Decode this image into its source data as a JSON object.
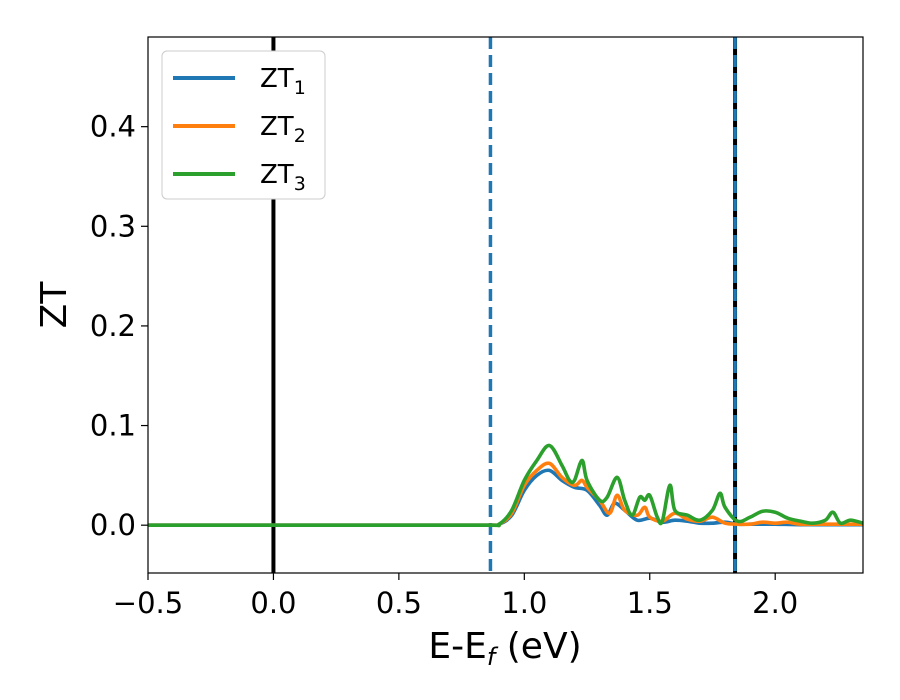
{
  "chart_data": {
    "type": "line",
    "xlabel": "E-E",
    "xlabel_sub": "f",
    "xlabel_unit": " (eV)",
    "ylabel": "ZT",
    "xlim": [
      -0.5,
      2.35
    ],
    "ylim": [
      -0.048,
      0.49
    ],
    "xticks": [
      -0.5,
      0.0,
      0.5,
      1.0,
      1.5,
      2.0
    ],
    "xtick_labels": [
      "−0.5",
      "0.0",
      "0.5",
      "1.0",
      "1.5",
      "2.0"
    ],
    "yticks": [
      0.0,
      0.1,
      0.2,
      0.3,
      0.4
    ],
    "ytick_labels": [
      "0.0",
      "0.1",
      "0.2",
      "0.3",
      "0.4"
    ],
    "grid": false,
    "legend_position": "top-left",
    "vlines": [
      {
        "x": 0.0,
        "color": "#000000",
        "style": "solid"
      },
      {
        "x": 0.865,
        "color": "#1f77b4",
        "style": "dashed"
      },
      {
        "x": 1.84,
        "color": "#000000",
        "style": "solid"
      },
      {
        "x": 1.84,
        "color": "#1f77b4",
        "style": "dashed"
      }
    ],
    "series": [
      {
        "name": "ZT",
        "name_sub": "1",
        "color": "#1f77b4",
        "x": [
          -0.5,
          0.0,
          0.5,
          0.86,
          0.9,
          0.95,
          1.0,
          1.05,
          1.1,
          1.15,
          1.2,
          1.25,
          1.3,
          1.33,
          1.36,
          1.4,
          1.45,
          1.5,
          1.55,
          1.6,
          1.65,
          1.7,
          1.75,
          1.8,
          1.85,
          1.9,
          1.95,
          2.0,
          2.1,
          2.2,
          2.3,
          2.35
        ],
        "y": [
          0,
          0,
          0,
          0,
          0.001,
          0.01,
          0.035,
          0.05,
          0.055,
          0.045,
          0.038,
          0.035,
          0.02,
          0.01,
          0.022,
          0.015,
          0.005,
          0.007,
          0.003,
          0.005,
          0.004,
          0.002,
          0.002,
          0.003,
          0.001,
          0.001,
          0.001,
          0.001,
          0.0005,
          0.0005,
          0.0005,
          0.0005
        ]
      },
      {
        "name": "ZT",
        "name_sub": "2",
        "color": "#ff7f0e",
        "x": [
          -0.5,
          0.0,
          0.5,
          0.86,
          0.9,
          0.95,
          1.0,
          1.05,
          1.1,
          1.15,
          1.2,
          1.23,
          1.25,
          1.3,
          1.34,
          1.37,
          1.4,
          1.45,
          1.48,
          1.5,
          1.55,
          1.6,
          1.65,
          1.7,
          1.75,
          1.8,
          1.85,
          1.9,
          1.95,
          2.0,
          2.05,
          2.1,
          2.2,
          2.3,
          2.35
        ],
        "y": [
          0,
          0,
          0,
          0,
          0.001,
          0.012,
          0.04,
          0.055,
          0.062,
          0.048,
          0.04,
          0.045,
          0.038,
          0.025,
          0.012,
          0.03,
          0.015,
          0.01,
          0.018,
          0.008,
          0.004,
          0.012,
          0.006,
          0.004,
          0.008,
          0.002,
          0.001,
          0.001,
          0.003,
          0.002,
          0.003,
          0.001,
          0.001,
          0.001,
          0.001
        ]
      },
      {
        "name": "ZT",
        "name_sub": "3",
        "color": "#2ca02c",
        "x": [
          -0.5,
          0.0,
          0.5,
          0.86,
          0.9,
          0.95,
          1.0,
          1.05,
          1.1,
          1.15,
          1.18,
          1.2,
          1.23,
          1.25,
          1.3,
          1.33,
          1.37,
          1.4,
          1.43,
          1.46,
          1.48,
          1.5,
          1.53,
          1.55,
          1.58,
          1.6,
          1.65,
          1.7,
          1.75,
          1.78,
          1.8,
          1.85,
          1.9,
          1.95,
          2.0,
          2.05,
          2.1,
          2.15,
          2.2,
          2.23,
          2.26,
          2.3,
          2.35
        ],
        "y": [
          0,
          0,
          0,
          0,
          0.001,
          0.015,
          0.045,
          0.065,
          0.08,
          0.06,
          0.045,
          0.045,
          0.065,
          0.045,
          0.025,
          0.028,
          0.048,
          0.025,
          0.01,
          0.028,
          0.025,
          0.03,
          0.008,
          0.004,
          0.04,
          0.015,
          0.01,
          0.005,
          0.015,
          0.032,
          0.018,
          0.004,
          0.008,
          0.014,
          0.013,
          0.007,
          0.004,
          0.002,
          0.005,
          0.013,
          0.002,
          0.005,
          0.002
        ]
      }
    ]
  }
}
